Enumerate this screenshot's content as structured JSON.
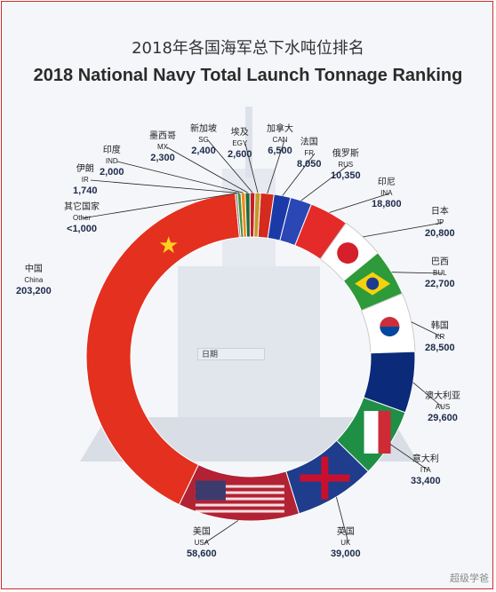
{
  "title_cn": "2018年各国海军总下水吨位排名",
  "title_en": "2018 National Navy Total Launch Tonnage Ranking",
  "date_label": "日期",
  "watermark": "超级学爸",
  "chart_data": {
    "type": "pie",
    "donut": true,
    "title": "2018 National Navy Total Launch Tonnage Ranking",
    "slices": [
      {
        "cn": "中国",
        "en": "China",
        "value": 203200,
        "display": "203,200",
        "color": "#e3301f"
      },
      {
        "cn": "美国",
        "en": "USA",
        "value": 58600,
        "display": "58,600",
        "color": "#b22234"
      },
      {
        "cn": "英国",
        "en": "UK",
        "value": 39000,
        "display": "39,000",
        "color": "#1f3d8c"
      },
      {
        "cn": "意大利",
        "en": "ITA",
        "value": 33400,
        "display": "33,400",
        "color": "#1e8f45"
      },
      {
        "cn": "澳大利亚",
        "en": "AUS",
        "value": 29600,
        "display": "29,600",
        "color": "#0b2a7a"
      },
      {
        "cn": "韩国",
        "en": "KR",
        "value": 28500,
        "display": "28,500",
        "color": "#ffffff"
      },
      {
        "cn": "巴西",
        "en": "BUL",
        "value": 22700,
        "display": "22,700",
        "color": "#2e9a3a"
      },
      {
        "cn": "日本",
        "en": "JP",
        "value": 20800,
        "display": "20,800",
        "color": "#ffffff"
      },
      {
        "cn": "印尼",
        "en": "INA",
        "value": 18800,
        "display": "18,800",
        "color": "#e52a2a"
      },
      {
        "cn": "俄罗斯",
        "en": "RUS",
        "value": 10350,
        "display": "10,350",
        "color": "#2a47b5"
      },
      {
        "cn": "法国",
        "en": "FR",
        "value": 8050,
        "display": "8,050",
        "color": "#1b3aa8"
      },
      {
        "cn": "加拿大",
        "en": "CAN",
        "value": 6500,
        "display": "6,500",
        "color": "#d52b1e"
      },
      {
        "cn": "埃及",
        "en": "EGY",
        "value": 2600,
        "display": "2,600",
        "color": "#c09a2a"
      },
      {
        "cn": "新加坡",
        "en": "SG",
        "value": 2400,
        "display": "2,400",
        "color": "#c21f2f"
      },
      {
        "cn": "墨西哥",
        "en": "MX",
        "value": 2300,
        "display": "2,300",
        "color": "#1f6b3a"
      },
      {
        "cn": "印度",
        "en": "IND",
        "value": 2000,
        "display": "2,000",
        "color": "#ef8a1f"
      },
      {
        "cn": "伊朗",
        "en": "IR",
        "value": 1740,
        "display": "1,740",
        "color": "#4c8f3a"
      },
      {
        "cn": "其它国家",
        "en": "Other",
        "value": 1000,
        "display": "<1,000",
        "color": "#7a7a7a"
      }
    ]
  }
}
